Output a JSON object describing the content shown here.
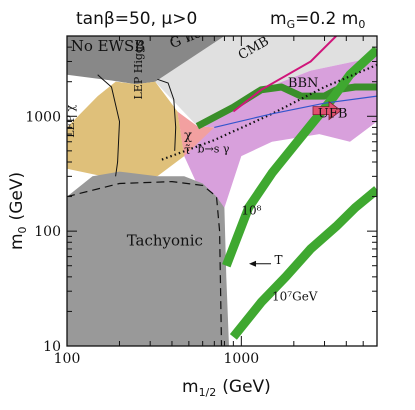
{
  "chart_data": {
    "type": "area",
    "header": {
      "left": "tanβ=50, μ>0",
      "right": "m",
      "right_sub": "G",
      "right_eq": "=0.2 m",
      "right_sub2": "0"
    },
    "xlabel": "m",
    "xlabel_sub": "1/2",
    "xlabel_unit": "(GeV)",
    "ylabel": "m",
    "ylabel_sub": "0",
    "ylabel_unit": "(GeV)",
    "xscale": "log",
    "yscale": "log",
    "xlim": [
      100,
      6000
    ],
    "ylim": [
      10,
      5000
    ],
    "xticks": [
      {
        "value": 100,
        "label": "100"
      },
      {
        "value": 1000,
        "label": "1000"
      }
    ],
    "yticks": [
      {
        "value": 10,
        "label": "10"
      },
      {
        "value": 100,
        "label": "100"
      },
      {
        "value": 1000,
        "label": "1000"
      }
    ],
    "regions": [
      {
        "name": "no-ewsb",
        "label": "No EWSB",
        "color": "#888888",
        "polygon": [
          [
            100,
            5000
          ],
          [
            100,
            2300
          ],
          [
            180,
            2050
          ],
          [
            250,
            1900
          ],
          [
            320,
            2000
          ],
          [
            420,
            2400
          ],
          [
            600,
            3400
          ],
          [
            800,
            5000
          ]
        ]
      },
      {
        "name": "g-not-lsp",
        "label": "G̃ not LSP",
        "color": "#e0e0e0",
        "polygon": [
          [
            320,
            2000
          ],
          [
            800,
            5000
          ],
          [
            6000,
            5000
          ],
          [
            6000,
            3300
          ],
          [
            2500,
            2500
          ],
          [
            1300,
            1700
          ],
          [
            900,
            1200
          ],
          [
            560,
            820
          ]
        ]
      },
      {
        "name": "lep-chi",
        "label": "LEP χ±",
        "color": "#dfc07a",
        "polygon": [
          [
            100,
            800
          ],
          [
            150,
            1500
          ],
          [
            190,
            2000
          ],
          [
            250,
            1900
          ],
          [
            320,
            2000
          ],
          [
            430,
            1100
          ],
          [
            470,
            450
          ],
          [
            330,
            300
          ],
          [
            160,
            300
          ],
          [
            100,
            350
          ]
        ]
      },
      {
        "name": "lep-higgs",
        "label": "LEP Higgs",
        "color": "#dfc07a",
        "polygon": [
          [
            190,
            2000
          ],
          [
            250,
            1900
          ],
          [
            320,
            2000
          ],
          [
            430,
            1100
          ],
          [
            470,
            450
          ],
          [
            200,
            300
          ]
        ]
      },
      {
        "name": "b-s-gamma",
        "label": "b→s γ",
        "color": "#f2a0a0",
        "polygon": [
          [
            430,
            1100
          ],
          [
            560,
            820
          ],
          [
            700,
            800
          ],
          [
            720,
            520
          ],
          [
            470,
            450
          ]
        ]
      },
      {
        "name": "cmb",
        "label": "CMB",
        "color": "#d8a0dc",
        "polygon": [
          [
            560,
            820
          ],
          [
            900,
            1200
          ],
          [
            1300,
            1700
          ],
          [
            2500,
            2500
          ],
          [
            6000,
            3300
          ],
          [
            6000,
            900
          ],
          [
            4200,
            600
          ],
          [
            2800,
            700
          ],
          [
            1500,
            600
          ],
          [
            1000,
            450
          ],
          [
            800,
            160
          ],
          [
            600,
            200
          ],
          [
            470,
            450
          ],
          [
            700,
            800
          ]
        ]
      },
      {
        "name": "tachyonic",
        "label": "Tachyonic",
        "color": "#999999",
        "polygon": [
          [
            100,
            10
          ],
          [
            100,
            200
          ],
          [
            140,
            300
          ],
          [
            200,
            330
          ],
          [
            330,
            300
          ],
          [
            470,
            300
          ],
          [
            600,
            260
          ],
          [
            720,
            200
          ],
          [
            800,
            160
          ],
          [
            820,
            40
          ],
          [
            850,
            10
          ]
        ]
      }
    ],
    "lines": [
      {
        "name": "lep-chi-boundary",
        "points": [
          [
            150,
            2300
          ],
          [
            160,
            2100
          ],
          [
            180,
            1800
          ],
          [
            200,
            900
          ],
          [
            195,
            400
          ],
          [
            190,
            300
          ]
        ]
      },
      {
        "name": "lep-higgs-boundary",
        "points": [
          [
            330,
            2100
          ],
          [
            380,
            1950
          ],
          [
            410,
            1400
          ],
          [
            420,
            800
          ],
          [
            415,
            500
          ]
        ]
      },
      {
        "name": "tachyonic-dashed",
        "points": [
          [
            100,
            200
          ],
          [
            200,
            260
          ],
          [
            400,
            270
          ],
          [
            600,
            250
          ],
          [
            720,
            200
          ],
          [
            750,
            100
          ],
          [
            770,
            10
          ]
        ]
      },
      {
        "name": "cmb-magenta",
        "points": [
          [
            900,
            1100
          ],
          [
            1300,
            1700
          ],
          [
            2500,
            3000
          ],
          [
            3500,
            5000
          ]
        ]
      },
      {
        "name": "chi-stau-dotted",
        "points": [
          [
            350,
            420
          ],
          [
            700,
            620
          ],
          [
            1500,
            1050
          ],
          [
            3000,
            1800
          ],
          [
            6000,
            2800
          ]
        ]
      },
      {
        "name": "ufb-boundary-blue",
        "points": [
          [
            700,
            800
          ],
          [
            1500,
            1050
          ],
          [
            3000,
            1300
          ],
          [
            6000,
            1500
          ]
        ]
      }
    ],
    "bands": [
      {
        "name": "bbn-band",
        "points": [
          [
            560,
            820
          ],
          [
            900,
            1200
          ],
          [
            1300,
            1700
          ],
          [
            1700,
            1800
          ],
          [
            2200,
            1500
          ],
          [
            3000,
            1500
          ],
          [
            3500,
            1700
          ],
          [
            4500,
            1800
          ],
          [
            6000,
            1800
          ]
        ],
        "color": "#3a8f2a"
      },
      {
        "name": "tr-1e8-band",
        "label": "10^8",
        "points": [
          [
            820,
            50
          ],
          [
            1100,
            160
          ],
          [
            1500,
            320
          ],
          [
            2000,
            550
          ],
          [
            2600,
            900
          ],
          [
            3300,
            1400
          ],
          [
            4200,
            2300
          ],
          [
            6000,
            3800
          ]
        ],
        "color": "#3fa830"
      },
      {
        "name": "tr-1e7-band",
        "label": "T_R= 10^7 GeV",
        "points": [
          [
            900,
            12
          ],
          [
            1300,
            24
          ],
          [
            1800,
            40
          ],
          [
            2500,
            70
          ],
          [
            3500,
            110
          ],
          [
            4500,
            160
          ],
          [
            6000,
            230
          ]
        ],
        "color": "#3fa830"
      }
    ],
    "annotations": [
      {
        "name": "no-ewsb-label",
        "text": "No EWSB",
        "x": 105,
        "y": 3700
      },
      {
        "name": "g-not-lsp-label",
        "text": "G̃ not LSP",
        "x": 400,
        "y": 3900,
        "rotate": -22
      },
      {
        "name": "cmb-label",
        "text": "CMB",
        "x": 1000,
        "y": 3100,
        "rotate": -30
      },
      {
        "name": "bbn-label",
        "text": "BBN",
        "x": 1850,
        "y": 1800
      },
      {
        "name": "ufb-label",
        "text": "UFB",
        "x": 2750,
        "y": 980
      },
      {
        "name": "lep-chi-label",
        "text": "LEP χ",
        "x": 110,
        "y": 650,
        "rotate": -90
      },
      {
        "name": "lep-higgs-label",
        "text": "LEP Higgs",
        "x": 270,
        "y": 1400,
        "rotate": -90
      },
      {
        "name": "chi-label",
        "text": "χ",
        "x": 470,
        "y": 630
      },
      {
        "name": "stau-label",
        "text": "τ̃",
        "x": 470,
        "y": 470
      },
      {
        "name": "bsg-label",
        "text": "b→s γ",
        "x": 560,
        "y": 485
      },
      {
        "name": "tachyonic-label",
        "text": "Tachyonic",
        "x": 220,
        "y": 75
      },
      {
        "name": "tr8-label",
        "text": "10⁸",
        "x": 1000,
        "y": 140
      },
      {
        "name": "tr7-label-a",
        "text": "T",
        "x": 1550,
        "y": 52
      },
      {
        "name": "tr7-label-b",
        "text": "10⁷GeV",
        "x": 1500,
        "y": 25
      }
    ]
  }
}
